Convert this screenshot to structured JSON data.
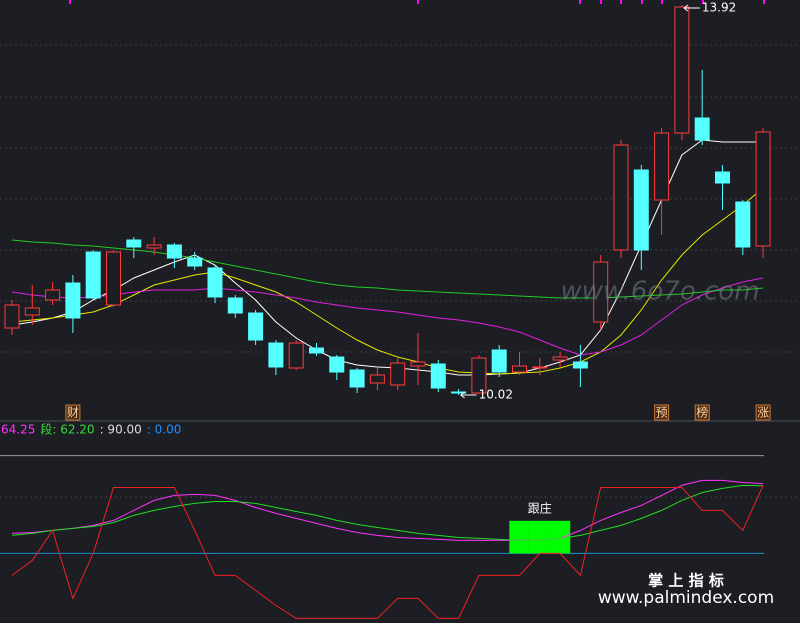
{
  "chart_data": [
    {
      "type": "candlestick",
      "ylim": [
        9.92,
        13.97
      ],
      "open": [
        10.69,
        10.82,
        10.97,
        11.14,
        11.45,
        10.92,
        11.57,
        11.49,
        11.52,
        11.39,
        11.29,
        10.99,
        10.84,
        10.54,
        10.29,
        10.49,
        10.4,
        10.27,
        10.14,
        10.12,
        10.31,
        10.33,
        10.05,
        10.04,
        10.47,
        10.25,
        10.3,
        10.37,
        10.35,
        10.75,
        11.47,
        12.27,
        11.97,
        12.64,
        12.79,
        12.25,
        11.95,
        11.51
      ],
      "high": [
        10.97,
        11.12,
        11.15,
        11.22,
        11.47,
        11.47,
        11.6,
        11.6,
        11.54,
        11.45,
        11.32,
        11.02,
        10.87,
        10.57,
        10.57,
        10.54,
        10.42,
        10.29,
        10.29,
        10.39,
        10.64,
        10.37,
        10.08,
        10.42,
        10.52,
        10.45,
        10.39,
        10.45,
        10.52,
        11.42,
        12.57,
        12.32,
        12.69,
        13.92,
        13.27,
        12.32,
        11.97,
        12.69
      ],
      "low": [
        10.62,
        10.72,
        10.92,
        10.64,
        10.97,
        10.9,
        11.39,
        11.42,
        11.29,
        11.27,
        10.94,
        10.79,
        10.52,
        10.22,
        10.27,
        10.41,
        10.17,
        10.04,
        10.07,
        10.07,
        10.12,
        10.05,
        10.02,
        10.03,
        10.2,
        10.22,
        10.22,
        10.3,
        10.1,
        10.67,
        11.39,
        11.27,
        11.62,
        12.57,
        12.52,
        11.87,
        11.42,
        11.39
      ],
      "close": [
        10.92,
        10.89,
        11.07,
        10.79,
        10.99,
        11.45,
        11.5,
        11.52,
        11.39,
        11.31,
        11.0,
        10.84,
        10.57,
        10.3,
        10.54,
        10.44,
        10.25,
        10.1,
        10.22,
        10.34,
        10.35,
        10.09,
        10.04,
        10.39,
        10.25,
        10.31,
        10.3,
        10.4,
        10.29,
        11.35,
        12.52,
        11.47,
        12.64,
        13.9,
        12.57,
        12.14,
        11.5,
        12.65
      ],
      "up_color": "#ff3b3b",
      "down_color": "#54ffff",
      "series": [
        {
          "color": "#ffffff",
          "values": [
            10.72,
            10.75,
            10.79,
            10.85,
            10.97,
            11.07,
            11.19,
            11.27,
            11.35,
            11.42,
            11.32,
            11.14,
            10.97,
            10.75,
            10.59,
            10.47,
            10.37,
            10.32,
            10.3,
            10.29,
            10.27,
            10.25,
            10.22,
            10.22,
            10.23,
            10.24,
            10.29,
            10.35,
            10.42,
            10.67,
            11.07,
            11.52,
            11.97,
            12.42,
            12.57,
            12.55,
            12.55,
            12.55
          ]
        },
        {
          "color": "#e6e600",
          "values": [
            10.75,
            10.77,
            10.79,
            10.82,
            10.85,
            10.92,
            11.02,
            11.12,
            11.17,
            11.22,
            11.25,
            11.19,
            11.12,
            11.05,
            10.95,
            10.82,
            10.69,
            10.57,
            10.47,
            10.4,
            10.35,
            10.29,
            10.25,
            10.24,
            10.23,
            10.24,
            10.25,
            10.29,
            10.35,
            10.45,
            10.62,
            10.87,
            11.17,
            11.42,
            11.62,
            11.77,
            11.92,
            12.09
          ]
        },
        {
          "color": "#e020e0",
          "values": [
            11.05,
            11.02,
            11.0,
            10.99,
            11.0,
            11.02,
            11.05,
            11.07,
            11.07,
            11.07,
            11.09,
            11.07,
            11.05,
            11.02,
            10.99,
            10.95,
            10.92,
            10.89,
            10.87,
            10.85,
            10.82,
            10.79,
            10.77,
            10.74,
            10.7,
            10.65,
            10.57,
            10.49,
            10.42,
            10.45,
            10.52,
            10.62,
            10.77,
            10.92,
            11.02,
            11.09,
            11.15,
            11.19
          ]
        },
        {
          "color": "#22cc22",
          "values": [
            11.57,
            11.55,
            11.54,
            11.52,
            11.51,
            11.49,
            11.47,
            11.45,
            11.42,
            11.39,
            11.35,
            11.31,
            11.27,
            11.23,
            11.19,
            11.15,
            11.12,
            11.1,
            11.09,
            11.07,
            11.06,
            11.05,
            11.04,
            11.03,
            11.02,
            11.01,
            11.0,
            10.99,
            10.99,
            10.99,
            11.0,
            11.01,
            11.02,
            11.03,
            11.05,
            11.07,
            11.07,
            11.09
          ]
        }
      ],
      "event_labels": [
        null,
        null,
        null,
        "财",
        null,
        null,
        null,
        null,
        null,
        null,
        null,
        null,
        null,
        null,
        null,
        null,
        null,
        null,
        null,
        null,
        null,
        null,
        null,
        null,
        null,
        null,
        null,
        null,
        null,
        null,
        null,
        null,
        "预",
        null,
        "榜",
        null,
        null,
        "涨"
      ],
      "watermark": "www.6o7o.com"
    },
    {
      "type": "line",
      "ylim": [
        -64,
        120
      ],
      "legend": [
        {
          "text": "64.25",
          "color": "#ff33ff"
        },
        {
          "text": "段: 62.20",
          "color": "#33dd33"
        },
        {
          "text": ": 90.00",
          "color": "#dddddd"
        },
        {
          "text": ": 0.00",
          "color": "#1e90ff"
        }
      ],
      "ref_lines": [
        {
          "value": 90,
          "color": "#9a9a9a"
        },
        {
          "value": 0,
          "color": "#1a8fd0"
        }
      ],
      "bars": {
        "name": "跟庄",
        "color": "#00ff00",
        "values": [
          null,
          null,
          null,
          null,
          null,
          null,
          null,
          null,
          null,
          null,
          null,
          null,
          null,
          null,
          null,
          null,
          null,
          null,
          null,
          null,
          null,
          null,
          null,
          null,
          null,
          30,
          30,
          30,
          null,
          null,
          null,
          null,
          null,
          null,
          null,
          null,
          null,
          null
        ]
      },
      "series": [
        {
          "color": "#ff33ff",
          "values": [
            18.4,
            19.3,
            21.2,
            23.0,
            25.8,
            30.4,
            39.6,
            48.8,
            53.4,
            54.3,
            53.4,
            48.8,
            42.3,
            36.8,
            32.2,
            27.6,
            23.0,
            19.3,
            16.6,
            14.7,
            13.8,
            12.9,
            12.0,
            12.0,
            12.0,
            12.0,
            12.0,
            13.8,
            21.2,
            30.4,
            37.7,
            44.2,
            53.4,
            62.6,
            67.2,
            67.2,
            65.3,
            64.25
          ]
        },
        {
          "color": "#22dd22",
          "values": [
            16.6,
            18.4,
            21.2,
            23.0,
            24.8,
            28.5,
            35.0,
            39.6,
            43.2,
            46.0,
            47.8,
            47.8,
            46.0,
            42.3,
            38.6,
            35.0,
            30.4,
            26.7,
            23.9,
            21.2,
            18.4,
            16.6,
            14.7,
            13.8,
            12.9,
            12.0,
            12.0,
            13.8,
            16.6,
            21.2,
            25.8,
            32.2,
            39.6,
            48.8,
            56.1,
            59.8,
            62.6,
            62.2
          ]
        },
        {
          "color": "#ee2222",
          "values": [
            -20.2,
            -6.4,
            21.2,
            -41.4,
            0,
            60.7,
            60.7,
            60.7,
            60.7,
            21.2,
            -20.2,
            -20.2,
            -34.0,
            -47.8,
            -59.8,
            -59.8,
            -59.8,
            -59.8,
            -59.8,
            -41.4,
            -41.4,
            -59.8,
            -59.8,
            -20.2,
            -20.2,
            -20.2,
            0,
            0,
            -20.2,
            60.7,
            60.7,
            60.7,
            60.7,
            60.7,
            39.6,
            39.6,
            21.2,
            62.6
          ]
        }
      ],
      "watermark_title": "掌 上 指 标",
      "watermark_url": "www.palmindex.com"
    }
  ]
}
